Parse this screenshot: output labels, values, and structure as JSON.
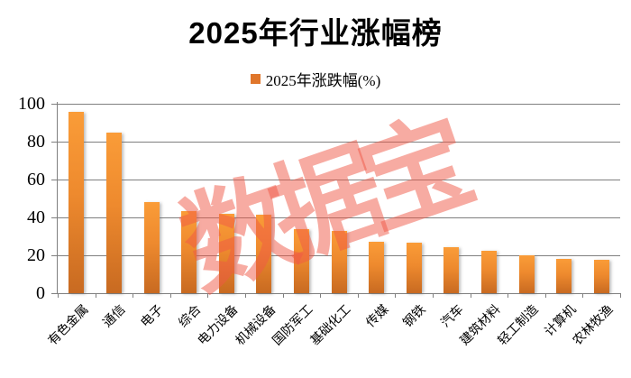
{
  "title": "2025年行业涨幅榜",
  "legend": {
    "label": "2025年涨跌幅(%)"
  },
  "watermark": {
    "text": "数据宝",
    "color_rgba": "rgba(240,88,70,0.5)"
  },
  "colors": {
    "bar_top": "#FA9C38",
    "bar_mid": "#EE8A2E",
    "bar_bottom": "#C86A21",
    "legend_swatch": "#E0762B",
    "grid": "#7F7F7F",
    "text": "#000000",
    "background": "#FFFFFF"
  },
  "chart_data": {
    "type": "bar",
    "title": "2025年行业涨幅榜",
    "categories": [
      "有色金属",
      "通信",
      "电子",
      "综合",
      "电力设备",
      "机械设备",
      "国防军工",
      "基础化工",
      "传媒",
      "钢铁",
      "汽车",
      "建筑材料",
      "轻工制造",
      "计算机",
      "农林牧渔"
    ],
    "series": [
      {
        "name": "2025年涨跌幅(%)",
        "values": [
          95.5,
          85,
          48,
          43.5,
          42,
          41.5,
          34,
          33,
          27,
          26.5,
          24.5,
          22.5,
          20,
          18,
          17.5
        ]
      }
    ],
    "xlabel": "",
    "ylabel": "",
    "ylim": [
      0,
      100
    ],
    "yticks": [
      0,
      20,
      40,
      60,
      80,
      100
    ],
    "grid": true,
    "legend_position": "top-center",
    "watermark": "数据宝"
  }
}
